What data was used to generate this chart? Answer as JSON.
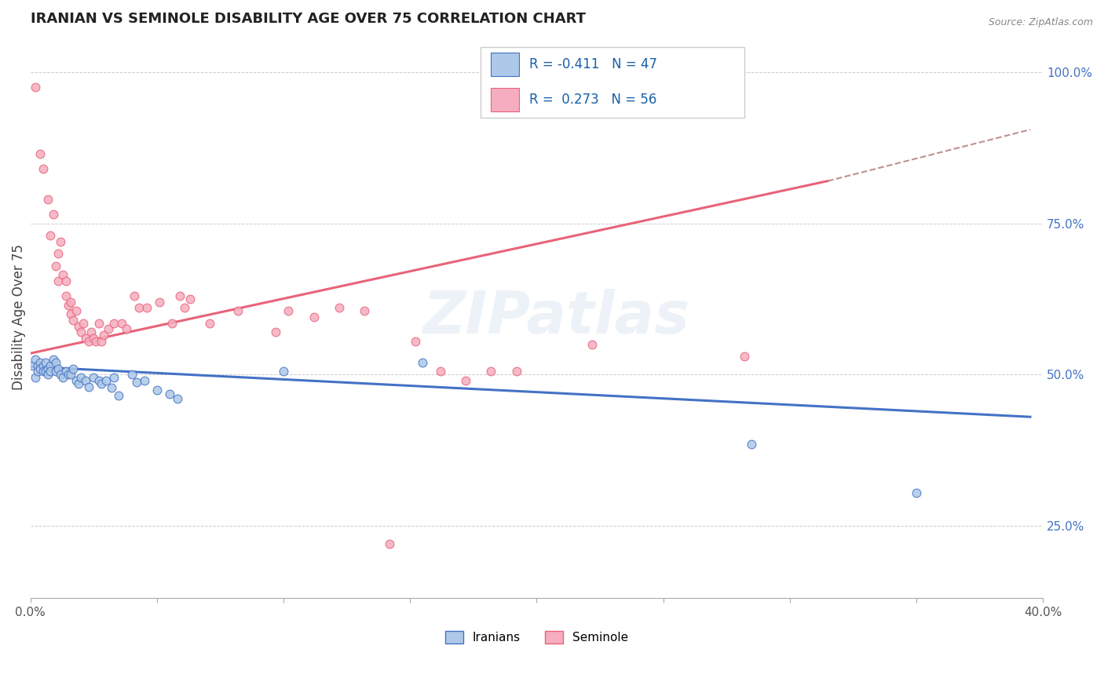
{
  "title": "IRANIAN VS SEMINOLE DISABILITY AGE OVER 75 CORRELATION CHART",
  "source": "Source: ZipAtlas.com",
  "ylabel": "Disability Age Over 75",
  "xlim": [
    0.0,
    0.4
  ],
  "ylim": [
    0.13,
    1.06
  ],
  "xticks": [
    0.0,
    0.05,
    0.1,
    0.15,
    0.2,
    0.25,
    0.3,
    0.35,
    0.4
  ],
  "xticklabels": [
    "0.0%",
    "",
    "",
    "",
    "",
    "",
    "",
    "",
    "40.0%"
  ],
  "yticks": [
    0.25,
    0.5,
    0.75,
    1.0
  ],
  "yticklabels": [
    "25.0%",
    "50.0%",
    "75.0%",
    "100.0%"
  ],
  "legend_r_iranian": "-0.411",
  "legend_n_iranian": "47",
  "legend_r_seminole": "0.273",
  "legend_n_seminole": "56",
  "iranian_color": "#adc8e8",
  "seminole_color": "#f5adbf",
  "iranian_line_color": "#4472c4",
  "seminole_line_color": "#e8637a",
  "watermark": "ZIPatlas",
  "iranian_points": [
    [
      0.001,
      0.515
    ],
    [
      0.002,
      0.525
    ],
    [
      0.002,
      0.495
    ],
    [
      0.003,
      0.515
    ],
    [
      0.003,
      0.505
    ],
    [
      0.004,
      0.52
    ],
    [
      0.004,
      0.51
    ],
    [
      0.005,
      0.515
    ],
    [
      0.005,
      0.505
    ],
    [
      0.006,
      0.52
    ],
    [
      0.006,
      0.505
    ],
    [
      0.007,
      0.51
    ],
    [
      0.007,
      0.5
    ],
    [
      0.008,
      0.515
    ],
    [
      0.008,
      0.505
    ],
    [
      0.009,
      0.525
    ],
    [
      0.01,
      0.52
    ],
    [
      0.01,
      0.505
    ],
    [
      0.011,
      0.51
    ],
    [
      0.012,
      0.5
    ],
    [
      0.013,
      0.495
    ],
    [
      0.014,
      0.505
    ],
    [
      0.015,
      0.5
    ],
    [
      0.016,
      0.5
    ],
    [
      0.017,
      0.51
    ],
    [
      0.018,
      0.49
    ],
    [
      0.019,
      0.485
    ],
    [
      0.02,
      0.495
    ],
    [
      0.022,
      0.49
    ],
    [
      0.023,
      0.48
    ],
    [
      0.025,
      0.495
    ],
    [
      0.027,
      0.49
    ],
    [
      0.028,
      0.485
    ],
    [
      0.03,
      0.49
    ],
    [
      0.032,
      0.478
    ],
    [
      0.033,
      0.495
    ],
    [
      0.035,
      0.465
    ],
    [
      0.04,
      0.5
    ],
    [
      0.042,
      0.488
    ],
    [
      0.045,
      0.49
    ],
    [
      0.05,
      0.475
    ],
    [
      0.055,
      0.468
    ],
    [
      0.058,
      0.46
    ],
    [
      0.1,
      0.505
    ],
    [
      0.155,
      0.52
    ],
    [
      0.285,
      0.385
    ],
    [
      0.35,
      0.305
    ]
  ],
  "seminole_points": [
    [
      0.002,
      0.975
    ],
    [
      0.004,
      0.865
    ],
    [
      0.005,
      0.84
    ],
    [
      0.007,
      0.79
    ],
    [
      0.008,
      0.73
    ],
    [
      0.009,
      0.765
    ],
    [
      0.01,
      0.68
    ],
    [
      0.011,
      0.7
    ],
    [
      0.011,
      0.655
    ],
    [
      0.012,
      0.72
    ],
    [
      0.013,
      0.665
    ],
    [
      0.014,
      0.655
    ],
    [
      0.014,
      0.63
    ],
    [
      0.015,
      0.615
    ],
    [
      0.016,
      0.62
    ],
    [
      0.016,
      0.6
    ],
    [
      0.017,
      0.59
    ],
    [
      0.018,
      0.605
    ],
    [
      0.019,
      0.58
    ],
    [
      0.02,
      0.57
    ],
    [
      0.021,
      0.585
    ],
    [
      0.022,
      0.56
    ],
    [
      0.023,
      0.555
    ],
    [
      0.024,
      0.57
    ],
    [
      0.025,
      0.56
    ],
    [
      0.026,
      0.555
    ],
    [
      0.027,
      0.585
    ],
    [
      0.028,
      0.555
    ],
    [
      0.029,
      0.565
    ],
    [
      0.031,
      0.575
    ],
    [
      0.033,
      0.585
    ],
    [
      0.036,
      0.585
    ],
    [
      0.038,
      0.575
    ],
    [
      0.041,
      0.63
    ],
    [
      0.043,
      0.61
    ],
    [
      0.046,
      0.61
    ],
    [
      0.051,
      0.62
    ],
    [
      0.056,
      0.585
    ],
    [
      0.059,
      0.63
    ],
    [
      0.061,
      0.61
    ],
    [
      0.063,
      0.625
    ],
    [
      0.071,
      0.585
    ],
    [
      0.082,
      0.605
    ],
    [
      0.097,
      0.57
    ],
    [
      0.102,
      0.605
    ],
    [
      0.112,
      0.595
    ],
    [
      0.122,
      0.61
    ],
    [
      0.132,
      0.605
    ],
    [
      0.142,
      0.22
    ],
    [
      0.152,
      0.555
    ],
    [
      0.162,
      0.505
    ],
    [
      0.172,
      0.49
    ],
    [
      0.182,
      0.505
    ],
    [
      0.192,
      0.505
    ],
    [
      0.222,
      0.55
    ],
    [
      0.282,
      0.53
    ]
  ],
  "iranian_trendline": [
    0.0,
    0.513,
    0.395,
    0.43
  ],
  "seminole_trendline_solid": [
    0.0,
    0.535,
    0.315,
    0.82
  ],
  "seminole_trendline_dashed": [
    0.315,
    0.82,
    0.395,
    0.905
  ]
}
